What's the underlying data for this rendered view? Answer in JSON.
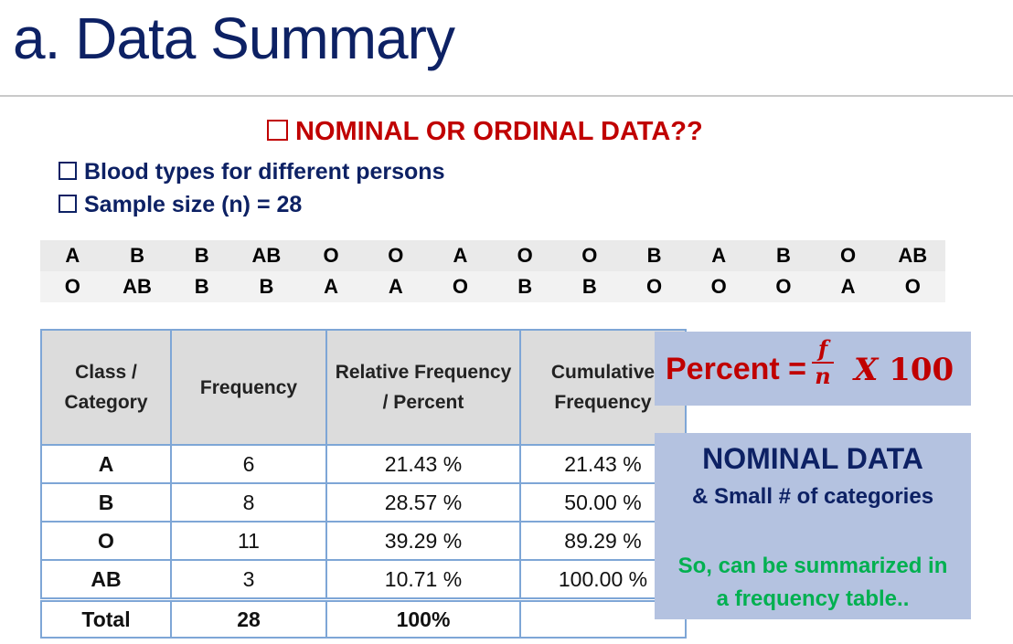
{
  "title": "a. Data Summary",
  "question": "NOMINAL OR ORDINAL DATA??",
  "bullets": [
    "Blood types for different persons",
    "Sample size (n) = 28"
  ],
  "raw_data": [
    [
      "A",
      "B",
      "B",
      "AB",
      "O",
      "O",
      "A",
      "O",
      "O",
      "B",
      "A",
      "B",
      "O",
      "AB"
    ],
    [
      "O",
      "AB",
      "B",
      "B",
      "A",
      "A",
      "O",
      "B",
      "B",
      "O",
      "O",
      "O",
      "A",
      "O"
    ]
  ],
  "freq_table": {
    "headers": [
      "Class / Category",
      "Frequency",
      "Relative Frequency / Percent",
      "Cumulative Frequency"
    ],
    "rows": [
      {
        "cls": "A",
        "freq": "6",
        "rel": "21.43 %",
        "cum": "21.43 %"
      },
      {
        "cls": "B",
        "freq": "8",
        "rel": "28.57 %",
        "cum": "50.00 %"
      },
      {
        "cls": "O",
        "freq": "11",
        "rel": "39.29 %",
        "cum": "89.29 %"
      },
      {
        "cls": "AB",
        "freq": "3",
        "rel": "10.71 %",
        "cum": "100.00 %"
      }
    ],
    "total": {
      "cls": "Total",
      "freq": "28",
      "rel": "100%",
      "cum": ""
    }
  },
  "formula": {
    "label": "Percent =",
    "numerator": "f",
    "denominator": "n",
    "times": "X",
    "factor": "100"
  },
  "nominal": {
    "title": "NOMINAL DATA",
    "subtitle": "& Small # of categories",
    "line1": "So, can be summarized in",
    "line2": "a frequency table.."
  },
  "colors": {
    "navy": "#0d2164",
    "red": "#c00000",
    "green": "#00b050",
    "box": "#b4c2e0",
    "table_border": "#7ea6d6"
  }
}
